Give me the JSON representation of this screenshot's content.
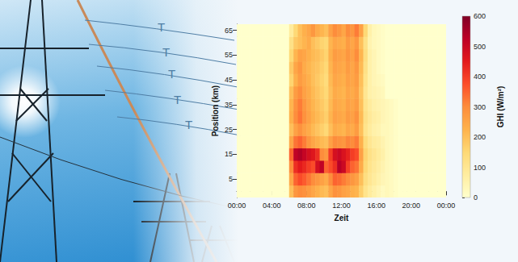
{
  "chart_data": {
    "type": "heatmap",
    "x_label": "Zeit",
    "y_label": "Position (km)",
    "annotations": [
      "T",
      "T",
      "T",
      "T",
      "T"
    ],
    "x": [
      0.25,
      0.75,
      1.25,
      1.75,
      2.25,
      2.75,
      3.25,
      3.75,
      4.25,
      4.75,
      5.25,
      5.75,
      6.25,
      6.75,
      7.25,
      7.75,
      8.25,
      8.75,
      9.25,
      9.75,
      10.25,
      10.75,
      11.25,
      11.75,
      12.25,
      12.75,
      13.25,
      13.75,
      14.25,
      14.75,
      15.25,
      15.75,
      16.25,
      16.75,
      17.25,
      17.75,
      18.25,
      18.75,
      19.25,
      19.75,
      20.25,
      20.75,
      21.25,
      21.75,
      22.25,
      22.75,
      23.25,
      23.75
    ],
    "y": [
      0,
      5,
      10,
      15,
      20,
      25,
      30,
      35,
      40,
      45,
      50,
      55,
      60,
      65
    ],
    "values": [
      [
        0,
        0,
        0,
        0,
        0,
        0,
        0,
        0,
        0,
        0,
        0,
        0,
        200,
        280,
        300,
        290,
        270,
        250,
        230,
        210,
        200,
        250,
        290,
        280,
        260,
        250,
        230,
        220,
        170,
        110,
        80,
        60,
        40,
        20,
        30,
        20,
        10,
        0,
        0,
        0,
        0,
        0,
        0,
        0,
        0,
        0,
        0,
        0
      ],
      [
        0,
        0,
        0,
        0,
        0,
        0,
        0,
        0,
        0,
        0,
        0,
        0,
        250,
        350,
        380,
        360,
        330,
        300,
        280,
        260,
        240,
        300,
        350,
        340,
        320,
        300,
        280,
        260,
        200,
        130,
        100,
        80,
        60,
        40,
        30,
        20,
        10,
        0,
        0,
        0,
        0,
        0,
        0,
        0,
        0,
        0,
        0,
        0
      ],
      [
        0,
        0,
        0,
        0,
        0,
        0,
        0,
        0,
        0,
        0,
        0,
        0,
        300,
        420,
        450,
        430,
        400,
        380,
        480,
        520,
        350,
        380,
        420,
        530,
        500,
        400,
        350,
        330,
        240,
        150,
        110,
        90,
        70,
        50,
        30,
        20,
        10,
        0,
        0,
        0,
        0,
        0,
        0,
        0,
        0,
        0,
        0,
        0
      ],
      [
        0,
        0,
        0,
        0,
        0,
        0,
        0,
        0,
        0,
        0,
        0,
        0,
        350,
        520,
        540,
        510,
        480,
        460,
        420,
        300,
        280,
        400,
        480,
        500,
        470,
        440,
        400,
        380,
        260,
        160,
        120,
        100,
        80,
        60,
        30,
        20,
        10,
        0,
        0,
        0,
        0,
        0,
        0,
        0,
        0,
        0,
        0,
        0
      ],
      [
        0,
        0,
        0,
        0,
        0,
        0,
        0,
        0,
        0,
        0,
        0,
        0,
        250,
        330,
        350,
        320,
        280,
        250,
        230,
        210,
        200,
        260,
        300,
        290,
        280,
        310,
        300,
        320,
        230,
        140,
        100,
        80,
        70,
        50,
        30,
        20,
        10,
        0,
        0,
        0,
        0,
        0,
        0,
        0,
        0,
        0,
        0,
        0
      ],
      [
        0,
        0,
        0,
        0,
        0,
        0,
        0,
        0,
        0,
        0,
        0,
        0,
        200,
        260,
        290,
        260,
        240,
        210,
        190,
        170,
        150,
        200,
        240,
        230,
        220,
        250,
        240,
        270,
        200,
        110,
        80,
        60,
        50,
        30,
        30,
        20,
        10,
        0,
        0,
        0,
        0,
        0,
        0,
        0,
        0,
        0,
        0,
        0
      ],
      [
        0,
        0,
        0,
        0,
        0,
        0,
        0,
        0,
        0,
        0,
        0,
        0,
        230,
        300,
        330,
        290,
        260,
        230,
        210,
        190,
        170,
        220,
        260,
        250,
        240,
        270,
        260,
        290,
        210,
        120,
        90,
        70,
        60,
        40,
        30,
        20,
        10,
        0,
        0,
        0,
        0,
        0,
        0,
        0,
        0,
        0,
        0,
        0
      ],
      [
        0,
        0,
        0,
        0,
        0,
        0,
        0,
        0,
        0,
        0,
        0,
        0,
        220,
        290,
        320,
        280,
        250,
        220,
        200,
        180,
        160,
        210,
        250,
        240,
        230,
        260,
        250,
        270,
        200,
        110,
        80,
        60,
        50,
        40,
        30,
        20,
        10,
        0,
        0,
        0,
        0,
        0,
        0,
        0,
        0,
        0,
        0,
        0
      ],
      [
        0,
        0,
        0,
        0,
        0,
        0,
        0,
        0,
        0,
        0,
        0,
        0,
        200,
        270,
        300,
        260,
        240,
        210,
        190,
        170,
        150,
        200,
        240,
        230,
        220,
        250,
        240,
        260,
        190,
        100,
        60,
        50,
        40,
        30,
        0,
        0,
        0,
        0,
        0,
        0,
        0,
        0,
        0,
        0,
        0,
        0,
        0,
        0
      ],
      [
        0,
        0,
        0,
        0,
        0,
        0,
        0,
        0,
        0,
        0,
        0,
        0,
        160,
        230,
        270,
        250,
        230,
        200,
        180,
        160,
        140,
        210,
        250,
        240,
        230,
        260,
        250,
        270,
        200,
        110,
        60,
        40,
        30,
        20,
        0,
        0,
        0,
        0,
        0,
        0,
        0,
        0,
        0,
        0,
        0,
        0,
        0,
        0
      ],
      [
        0,
        0,
        0,
        0,
        0,
        0,
        0,
        0,
        0,
        0,
        0,
        0,
        180,
        250,
        280,
        240,
        220,
        200,
        190,
        170,
        150,
        220,
        260,
        250,
        240,
        270,
        250,
        280,
        210,
        120,
        60,
        40,
        20,
        10,
        0,
        0,
        0,
        0,
        0,
        0,
        0,
        0,
        0,
        0,
        0,
        0,
        0,
        0
      ],
      [
        0,
        0,
        0,
        0,
        0,
        0,
        0,
        0,
        0,
        0,
        0,
        0,
        150,
        220,
        260,
        250,
        230,
        210,
        200,
        180,
        160,
        230,
        270,
        260,
        250,
        280,
        260,
        300,
        220,
        130,
        60,
        40,
        20,
        10,
        0,
        0,
        0,
        0,
        0,
        0,
        0,
        0,
        0,
        0,
        0,
        0,
        0,
        0
      ],
      [
        0,
        0,
        0,
        0,
        0,
        0,
        0,
        0,
        0,
        0,
        0,
        0,
        120,
        180,
        200,
        220,
        240,
        200,
        180,
        160,
        150,
        220,
        250,
        240,
        230,
        270,
        250,
        280,
        200,
        120,
        50,
        30,
        20,
        10,
        0,
        0,
        0,
        0,
        0,
        0,
        0,
        0,
        0,
        0,
        0,
        0,
        0,
        0
      ],
      [
        0,
        0,
        0,
        0,
        0,
        0,
        0,
        0,
        0,
        0,
        0,
        0,
        80,
        150,
        200,
        230,
        250,
        280,
        240,
        220,
        200,
        260,
        300,
        280,
        250,
        300,
        280,
        320,
        260,
        150,
        60,
        30,
        20,
        10,
        0,
        0,
        0,
        0,
        0,
        0,
        0,
        0,
        0,
        0,
        0,
        0,
        0,
        0
      ]
    ],
    "xlim": [
      0,
      24
    ],
    "xticks": [
      {
        "value": 0,
        "label": "00:00"
      },
      {
        "value": 4,
        "label": "04:00"
      },
      {
        "value": 8,
        "label": "08:00"
      },
      {
        "value": 12,
        "label": "12:00"
      },
      {
        "value": 16,
        "label": "16:00"
      },
      {
        "value": 20,
        "label": "20:00"
      },
      {
        "value": 24,
        "label": "00:00"
      }
    ],
    "ylim": [
      -2.5,
      67.5
    ],
    "yticks": [
      5,
      15,
      25,
      35,
      45,
      55,
      65
    ],
    "colorbar": {
      "label": "GHI (W/m²)",
      "lim": [
        0,
        600
      ],
      "ticks": [
        0,
        100,
        200,
        300,
        400,
        500,
        600
      ]
    }
  }
}
